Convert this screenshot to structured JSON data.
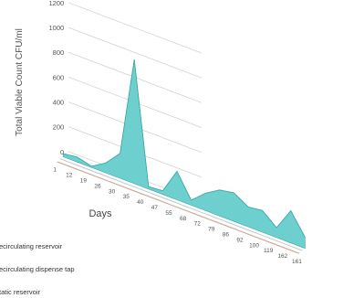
{
  "chart_data": {
    "type": "area",
    "view": "3d-perspective",
    "ylabel": "Total Viable Count CFU/ml",
    "xlabel": "Days",
    "ylim": [
      0,
      1200
    ],
    "yticks": [
      0,
      200,
      400,
      600,
      800,
      1000,
      1200
    ],
    "categories": [
      "1",
      "12",
      "19",
      "26",
      "30",
      "35",
      "40",
      "47",
      "55",
      "68",
      "72",
      "79",
      "86",
      "92",
      "100",
      "119",
      "162",
      "161"
    ],
    "grid": true,
    "legend_position": "bottom-left",
    "colors": {
      "area": "#6ecfcf",
      "area_edge": "#3aa7a7",
      "static_band": "#c9a793",
      "dispense_band": "#a9bcc4",
      "grid": "#d2d2d2"
    },
    "series": [
      {
        "name": "Recirculating reservoir",
        "legend_label": "ecirculating reservoir",
        "values": [
          5,
          5,
          5,
          5,
          5,
          5,
          5,
          5,
          5,
          5,
          5,
          5,
          5,
          5,
          5,
          5,
          5,
          5
        ]
      },
      {
        "name": "Recirculating dispense tap",
        "legend_label": "ecirculating dispense tap",
        "values": [
          8,
          8,
          8,
          8,
          8,
          8,
          8,
          8,
          8,
          8,
          8,
          8,
          8,
          8,
          8,
          8,
          8,
          8
        ]
      },
      {
        "name": "Static reservoir",
        "legend_label": "tatic reservoir",
        "values": [
          25,
          40,
          10,
          80,
          200,
          1000,
          20,
          30,
          230,
          40,
          140,
          210,
          230,
          160,
          175,
          80,
          260,
          90
        ]
      }
    ]
  }
}
